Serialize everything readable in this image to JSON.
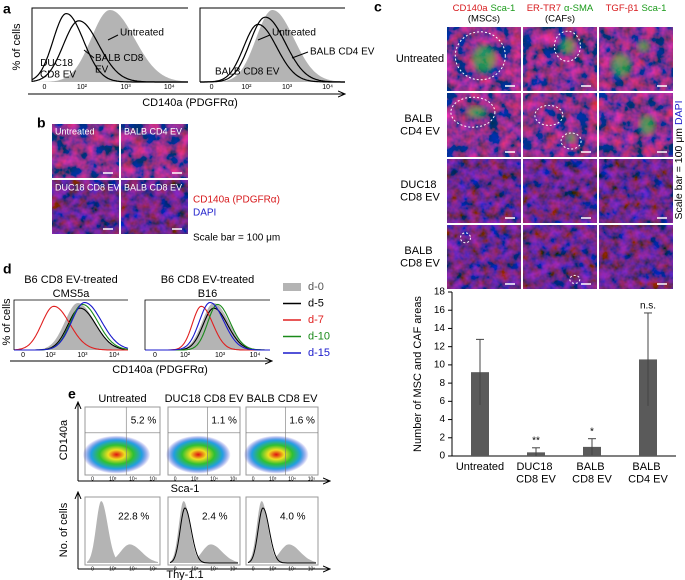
{
  "panels": {
    "a": {
      "label": "a",
      "y_label": "% of cells",
      "x_label": "CD140a (PDGFRα)",
      "x_ticks": [
        "0",
        "10²",
        "10³",
        "10⁴"
      ],
      "plots": [
        {
          "curves": [
            "Untreated",
            "DUC18 CD8 EV",
            "BALB CD8 EV"
          ]
        },
        {
          "curves": [
            "Untreated",
            "BALB CD8 EV",
            "BALB CD4 EV"
          ]
        }
      ]
    },
    "b": {
      "label": "b",
      "images": [
        "Untreated",
        "BALB CD4 EV",
        "DUC18 CD8 EV",
        "BALB CD8 EV"
      ],
      "legend": [
        "CD140a (PDGFRα)",
        "DAPI"
      ],
      "scale_note": "Scale bar = 100 μm"
    },
    "c": {
      "label": "c",
      "columns": [
        {
          "stains": [
            "CD140a",
            "Sca-1"
          ],
          "note": "(MSCs)"
        },
        {
          "stains": [
            "ER-TR7",
            "α-SMA"
          ],
          "note": "(CAFs)"
        },
        {
          "stains": [
            "TGF-β1",
            "Sca-1"
          ]
        }
      ],
      "rows": [
        "Untreated",
        "BALB CD4 EV",
        "DUC18 CD8 EV",
        "BALB CD8 EV"
      ],
      "scale_note": "Scale bar = 100 μm",
      "counterstain": "DAPI"
    },
    "d": {
      "label": "d",
      "y_label": "% of cells",
      "x_label": "CD140a (PDGFRα)",
      "x_ticks": [
        "0",
        "10²",
        "10³",
        "10⁴"
      ],
      "plots": [
        {
          "title": "B6 CD8 EV-treated",
          "subtitle": "CMS5a"
        },
        {
          "title": "B6 CD8 EV-treated",
          "subtitle": "B16"
        }
      ],
      "legend": [
        {
          "name": "d-0",
          "color": "#b4b4b4"
        },
        {
          "name": "d-5",
          "color": "#000000"
        },
        {
          "name": "d-7",
          "color": "#e02020"
        },
        {
          "name": "d-10",
          "color": "#1a8a1a"
        },
        {
          "name": "d-15",
          "color": "#1a1acc"
        }
      ]
    },
    "e": {
      "label": "e",
      "plots": [
        {
          "title": "Untreated",
          "scatter_percent": "5.2 %",
          "histogram_percent": "22.8 %"
        },
        {
          "title": "DUC18 CD8 EV",
          "scatter_percent": "1.1 %",
          "histogram_percent": "2.4 %"
        },
        {
          "title": "BALB CD8 EV",
          "scatter_percent": "1.6 %",
          "histogram_percent": "4.0 %"
        }
      ],
      "ticks": [
        "0",
        "10³",
        "10⁴",
        "10⁵"
      ],
      "scatter_y_label": "CD140a",
      "scatter_x_label": "Sca-1",
      "histogram_y_label": "No. of cells",
      "histogram_x_label": "Thy-1.1"
    }
  },
  "chart_data": {
    "type": "bar",
    "y_label": "Number of MSC and CAF areas",
    "categories": [
      "Untreated",
      "DUC18 CD8 EV",
      "BALB CD8 EV",
      "BALB CD4 EV"
    ],
    "values": [
      9.2,
      0.4,
      1.0,
      10.6
    ],
    "errors": [
      3.6,
      0.5,
      0.9,
      5.1
    ],
    "significance": [
      null,
      "**",
      "*",
      "n.s."
    ],
    "color": "#5a5a5a",
    "ylim": [
      0,
      18
    ],
    "yticks": [
      0,
      2,
      4,
      6,
      8,
      10,
      12,
      14,
      16,
      18
    ]
  }
}
